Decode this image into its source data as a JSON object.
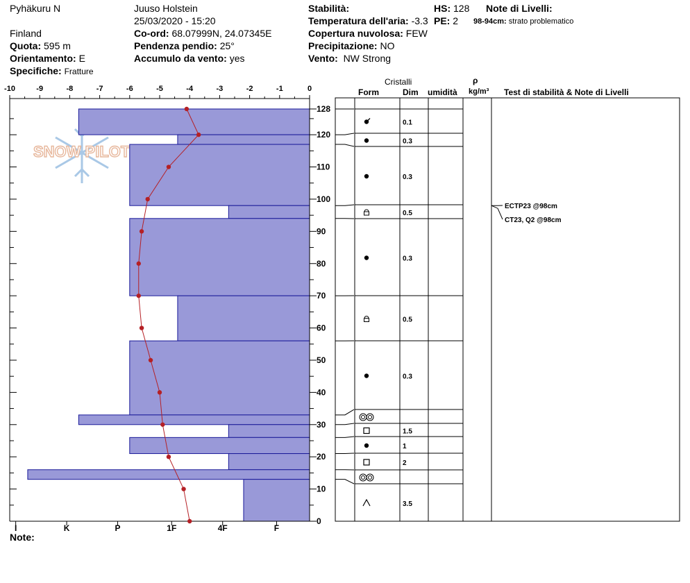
{
  "header": {
    "location": "Pyhäkuru N",
    "country": "Finland",
    "observer": "Juuso Holstein",
    "datetime": "25/03/2020 - 15:20",
    "elevation_label": "Quota:",
    "elevation_value": "595 m",
    "aspect_label": "Orientamento:",
    "aspect_value": "E",
    "specifics_label": "Specifiche:",
    "specifics_value": "Fratture",
    "coords_label": "Co-ord:",
    "coords_value": "68.07999N, 24.07345E",
    "slope_label": "Pendenza pendio:",
    "slope_value": "25°",
    "wind_loading_label": "Accumulo da vento:",
    "wind_loading_value": "yes",
    "stability_label": "Stabilità:",
    "air_temp_label": "Temperatura dell'aria:",
    "air_temp_value": "-3.3",
    "cloud_label": "Copertura nuvolosa:",
    "cloud_value": "FEW",
    "precip_label": "Precipitazione:",
    "precip_value": "NO",
    "wind_label": "Vento:",
    "wind_value": "NW Strong",
    "hs_label": "HS:",
    "hs_value": "128",
    "pe_label": "PE:",
    "pe_value": "2",
    "layer_notes_label": "Note di Livelli:",
    "layer_note_range": "98-94cm:",
    "layer_note_text": "strato problematico"
  },
  "table_headers": {
    "crystals": "Cristalli",
    "form": "Form",
    "size": "Dim",
    "moisture": "umidità",
    "rho": "ρ",
    "density_unit": "kg/m³",
    "tests": "Test di stabilità & Note di Livelli"
  },
  "notes_label": "Note:",
  "watermark": "SNOW PILOT",
  "colors": {
    "layer_fill": "#9999d8",
    "layer_stroke": "#1a1a99",
    "temp": "#b52025"
  },
  "chart_data": {
    "type": "snow_profile",
    "temperature_axis": {
      "ticks": [
        -10,
        -9,
        -8,
        -7,
        -6,
        -5,
        -4,
        -3,
        -2,
        -1,
        0
      ],
      "range": [
        -10,
        0
      ]
    },
    "height_axis": {
      "ticks": [
        0,
        10,
        20,
        30,
        40,
        50,
        60,
        70,
        80,
        90,
        100,
        110,
        120,
        128
      ],
      "range": [
        0,
        128
      ]
    },
    "hardness_axis": {
      "ticks": [
        "I",
        "K",
        "P",
        "1F",
        "4F",
        "F"
      ]
    },
    "layers": [
      {
        "top": 128,
        "bottom": 120,
        "hardness_temp": -7.7,
        "form": "rounded-faceted",
        "size": "0.1"
      },
      {
        "top": 120,
        "bottom": 117,
        "hardness_temp": -4.4,
        "form": "rounded",
        "size": "0.3"
      },
      {
        "top": 117,
        "bottom": 98,
        "hardness_temp": -6.0,
        "form": "rounded",
        "size": "0.3"
      },
      {
        "top": 98,
        "bottom": 94,
        "hardness_temp": -2.7,
        "form": "faceted-rounded",
        "size": "0.5"
      },
      {
        "top": 94,
        "bottom": 70,
        "hardness_temp": -6.0,
        "form": "rounded",
        "size": "0.3"
      },
      {
        "top": 70,
        "bottom": 56,
        "hardness_temp": -4.4,
        "form": "faceted-rounded",
        "size": "0.5"
      },
      {
        "top": 56,
        "bottom": 33,
        "hardness_temp": -6.0,
        "form": "rounded",
        "size": "0.3"
      },
      {
        "top": 33,
        "bottom": 30,
        "hardness_temp": -7.7,
        "form": "melt-forms",
        "size": ""
      },
      {
        "top": 30,
        "bottom": 26,
        "hardness_temp": -2.7,
        "form": "faceted",
        "size": "1.5"
      },
      {
        "top": 26,
        "bottom": 21,
        "hardness_temp": -6.0,
        "form": "rounded",
        "size": "1"
      },
      {
        "top": 21,
        "bottom": 16,
        "hardness_temp": -2.7,
        "form": "faceted",
        "size": "2"
      },
      {
        "top": 16,
        "bottom": 13,
        "hardness_temp": -9.4,
        "form": "melt-forms",
        "size": ""
      },
      {
        "top": 13,
        "bottom": 0,
        "hardness_temp": -2.2,
        "form": "depth-hoar",
        "size": "3.5"
      }
    ],
    "temperature_profile": [
      {
        "h": 128,
        "t": -4.1
      },
      {
        "h": 120,
        "t": -3.7
      },
      {
        "h": 110,
        "t": -4.7
      },
      {
        "h": 100,
        "t": -5.4
      },
      {
        "h": 90,
        "t": -5.6
      },
      {
        "h": 80,
        "t": -5.7
      },
      {
        "h": 70,
        "t": -5.7
      },
      {
        "h": 60,
        "t": -5.6
      },
      {
        "h": 50,
        "t": -5.3
      },
      {
        "h": 40,
        "t": -5.0
      },
      {
        "h": 30,
        "t": -4.9
      },
      {
        "h": 20,
        "t": -4.7
      },
      {
        "h": 10,
        "t": -4.2
      },
      {
        "h": 0,
        "t": -4.0
      }
    ],
    "stability_tests": [
      {
        "label": "ECTP23 @98cm",
        "height": 98
      },
      {
        "label": "CT23, Q2 @98cm",
        "height": 98
      }
    ]
  }
}
